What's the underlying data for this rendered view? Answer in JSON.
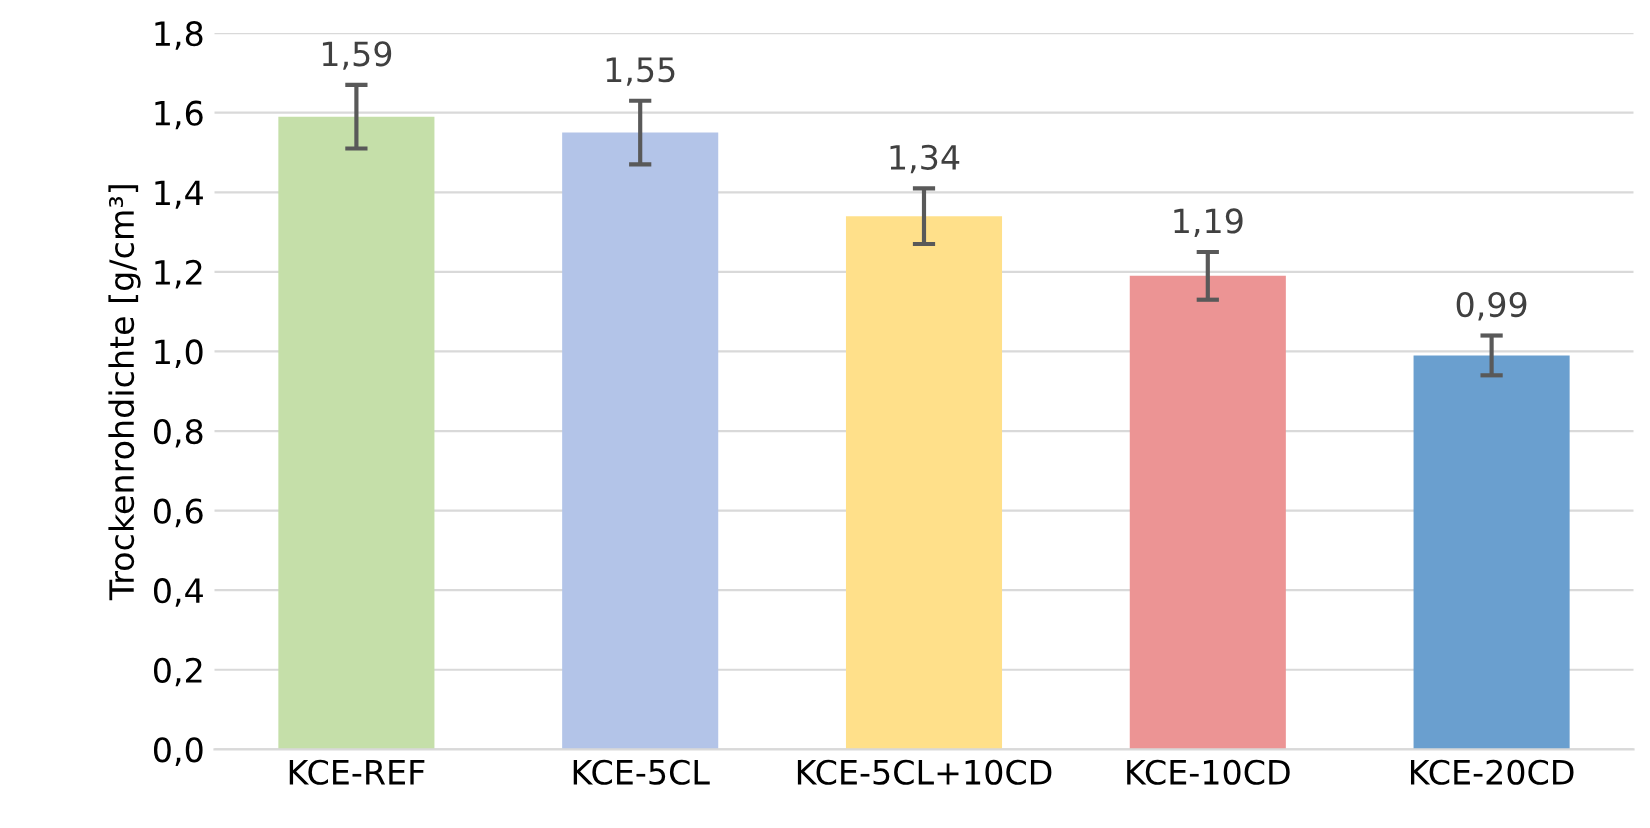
{
  "chart_data": {
    "type": "bar",
    "ylabel": "Trockenrohdichte [g/cm³]",
    "categories": [
      "KCE-REF",
      "KCE-5CL",
      "KCE-5CL+10CD",
      "KCE-10CD",
      "KCE-20CD"
    ],
    "values": [
      1.59,
      1.55,
      1.34,
      1.19,
      0.99
    ],
    "value_labels": [
      "1,59",
      "1,55",
      "1,34",
      "1,19",
      "0,99"
    ],
    "errors": [
      0.08,
      0.08,
      0.07,
      0.06,
      0.05
    ],
    "colors": [
      "#c5dfa9",
      "#b3c4e8",
      "#ffe08a",
      "#ec9494",
      "#6a9fcf"
    ],
    "ylim": [
      0,
      1.8
    ],
    "yticks": [
      {
        "value": 0,
        "label": "0,0"
      },
      {
        "value": 0.2,
        "label": "0,2"
      },
      {
        "value": 0.4,
        "label": "0,4"
      },
      {
        "value": 0.6,
        "label": "0,6"
      },
      {
        "value": 0.8,
        "label": "0,8"
      },
      {
        "value": 1.0,
        "label": "1,0"
      },
      {
        "value": 1.2,
        "label": "1,2"
      },
      {
        "value": 1.4,
        "label": "1,4"
      },
      {
        "value": 1.6,
        "label": "1,6"
      },
      {
        "value": 1.8,
        "label": "1,8"
      }
    ],
    "grid": "y",
    "legend": false
  }
}
